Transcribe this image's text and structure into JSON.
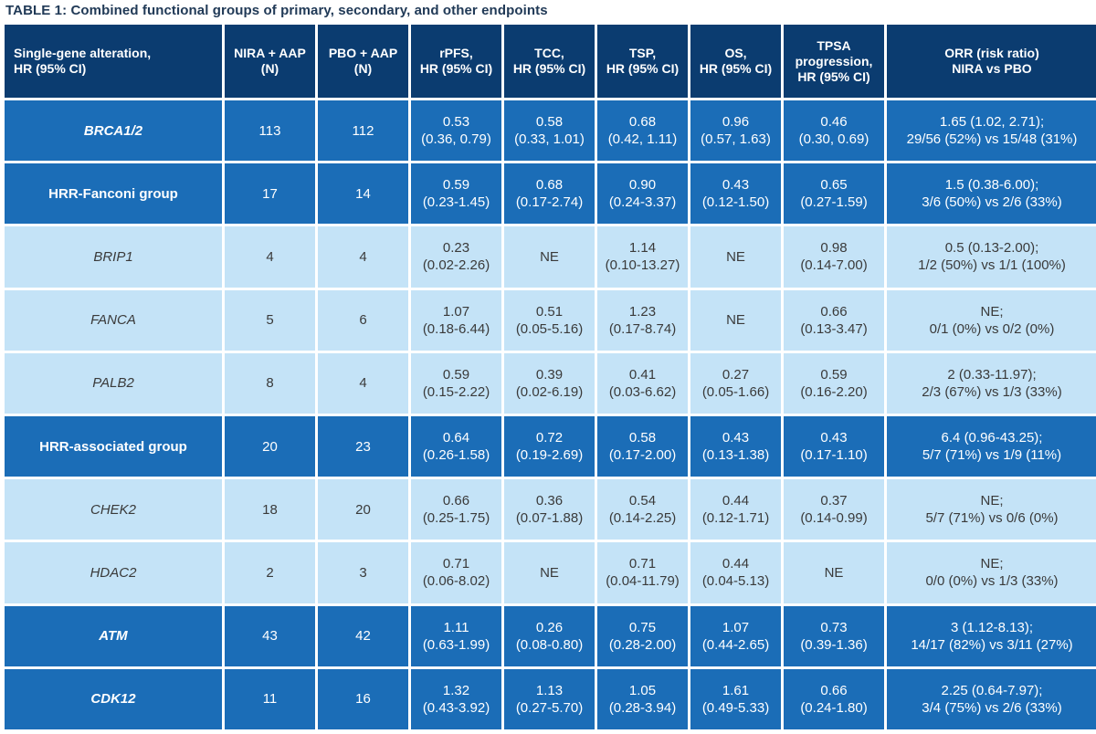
{
  "title": "TABLE 1: Combined functional groups of primary, secondary, and other endpoints",
  "table": {
    "header": [
      [
        "Single-gene alteration,",
        "HR (95% CI)"
      ],
      [
        "NIRA + AAP",
        "(N)"
      ],
      [
        "PBO + AAP",
        "(N)"
      ],
      [
        "rPFS,",
        "HR (95% CI)"
      ],
      [
        "TCC,",
        "HR (95% CI)"
      ],
      [
        "TSP,",
        "HR (95% CI)"
      ],
      [
        "OS,",
        "HR (95% CI)"
      ],
      [
        "TPSA",
        "progression,",
        "HR (95% CI)"
      ],
      [
        "ORR (risk ratio)",
        "NIRA vs PBO"
      ]
    ],
    "rows": [
      [
        [
          "BRCA1/2"
        ],
        [
          "113"
        ],
        [
          "112"
        ],
        [
          "0.53",
          "(0.36, 0.79)"
        ],
        [
          "0.58",
          "(0.33, 1.01)"
        ],
        [
          "0.68",
          "(0.42, 1.11)"
        ],
        [
          "0.96",
          "(0.57, 1.63)"
        ],
        [
          "0.46",
          "(0.30, 0.69)"
        ],
        [
          "1.65 (1.02, 2.71);",
          "29/56 (52%) vs 15/48 (31%)"
        ]
      ],
      [
        [
          "HRR-Fanconi group"
        ],
        [
          "17"
        ],
        [
          "14"
        ],
        [
          "0.59",
          "(0.23-1.45)"
        ],
        [
          "0.68",
          "(0.17-2.74)"
        ],
        [
          "0.90",
          "(0.24-3.37)"
        ],
        [
          "0.43",
          "(0.12-1.50)"
        ],
        [
          "0.65",
          "(0.27-1.59)"
        ],
        [
          "1.5 (0.38-6.00);",
          "3/6 (50%) vs 2/6 (33%)"
        ]
      ],
      [
        [
          "BRIP1"
        ],
        [
          "4"
        ],
        [
          "4"
        ],
        [
          "0.23",
          "(0.02-2.26)"
        ],
        [
          "NE"
        ],
        [
          "1.14",
          "(0.10-13.27)"
        ],
        [
          "NE"
        ],
        [
          "0.98",
          "(0.14-7.00)"
        ],
        [
          "0.5 (0.13-2.00);",
          "1/2 (50%) vs 1/1 (100%)"
        ]
      ],
      [
        [
          "FANCA"
        ],
        [
          "5"
        ],
        [
          "6"
        ],
        [
          "1.07",
          "(0.18-6.44)"
        ],
        [
          "0.51",
          "(0.05-5.16)"
        ],
        [
          "1.23",
          "(0.17-8.74)"
        ],
        [
          "NE"
        ],
        [
          "0.66",
          "(0.13-3.47)"
        ],
        [
          "NE;",
          "0/1 (0%) vs 0/2 (0%)"
        ]
      ],
      [
        [
          "PALB2"
        ],
        [
          "8"
        ],
        [
          "4"
        ],
        [
          "0.59",
          "(0.15-2.22)"
        ],
        [
          "0.39",
          "(0.02-6.19)"
        ],
        [
          "0.41",
          "(0.03-6.62)"
        ],
        [
          "0.27",
          "(0.05-1.66)"
        ],
        [
          "0.59",
          "(0.16-2.20)"
        ],
        [
          "2 (0.33-11.97);",
          "2/3 (67%) vs 1/3 (33%)"
        ]
      ],
      [
        [
          "HRR-associated group"
        ],
        [
          "20"
        ],
        [
          "23"
        ],
        [
          "0.64",
          "(0.26-1.58)"
        ],
        [
          "0.72",
          "(0.19-2.69)"
        ],
        [
          "0.58",
          "(0.17-2.00)"
        ],
        [
          "0.43",
          "(0.13-1.38)"
        ],
        [
          "0.43",
          "(0.17-1.10)"
        ],
        [
          "6.4 (0.96-43.25);",
          "5/7 (71%) vs 1/9 (11%)"
        ]
      ],
      [
        [
          "CHEK2"
        ],
        [
          "18"
        ],
        [
          "20"
        ],
        [
          "0.66",
          "(0.25-1.75)"
        ],
        [
          "0.36",
          "(0.07-1.88)"
        ],
        [
          "0.54",
          "(0.14-2.25)"
        ],
        [
          "0.44",
          "(0.12-1.71)"
        ],
        [
          "0.37",
          "(0.14-0.99)"
        ],
        [
          "NE;",
          "5/7 (71%) vs 0/6 (0%)"
        ]
      ],
      [
        [
          "HDAC2"
        ],
        [
          "2"
        ],
        [
          "3"
        ],
        [
          "0.71",
          "(0.06-8.02)"
        ],
        [
          "NE"
        ],
        [
          "0.71",
          "(0.04-11.79)"
        ],
        [
          "0.44",
          "(0.04-5.13)"
        ],
        [
          "NE"
        ],
        [
          "NE;",
          "0/0 (0%) vs 1/3 (33%)"
        ]
      ],
      [
        [
          "ATM"
        ],
        [
          "43"
        ],
        [
          "42"
        ],
        [
          "1.11",
          "(0.63-1.99)"
        ],
        [
          "0.26",
          "(0.08-0.80)"
        ],
        [
          "0.75",
          "(0.28-2.00)"
        ],
        [
          "1.07",
          "(0.44-2.65)"
        ],
        [
          "0.73",
          "(0.39-1.36)"
        ],
        [
          "3 (1.12-8.13);",
          "14/17 (82%) vs 3/11 (27%)"
        ]
      ],
      [
        [
          "CDK12"
        ],
        [
          "11"
        ],
        [
          "16"
        ],
        [
          "1.32",
          "(0.43-3.92)"
        ],
        [
          "1.13",
          "(0.27-5.70)"
        ],
        [
          "1.05",
          "(0.28-3.94)"
        ],
        [
          "1.61",
          "(0.49-5.33)"
        ],
        [
          "0.66",
          "(0.24-1.80)"
        ],
        [
          "2.25 (0.64-7.97);",
          "3/4 (75%) vs 2/6 (33%)"
        ]
      ]
    ]
  }
}
